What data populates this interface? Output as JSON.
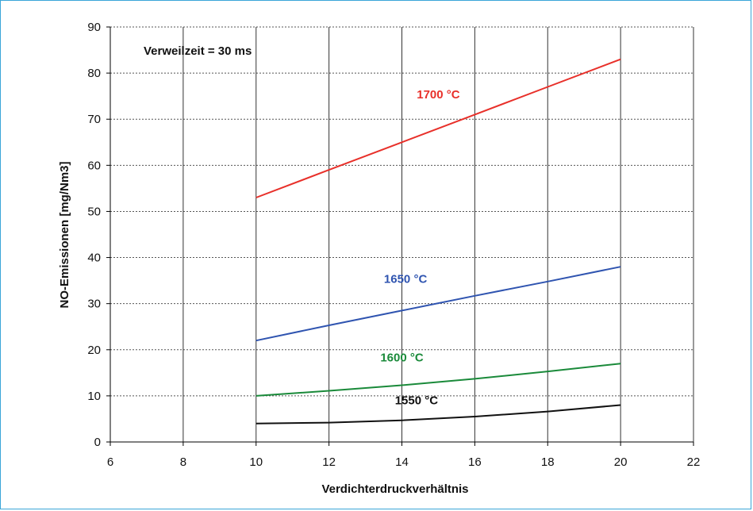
{
  "chart_data": {
    "type": "line",
    "xlabel": "Verdichterdruckverhältnis",
    "ylabel": "NO-Emissionen [mg/Nm3]",
    "xlim": [
      6,
      22
    ],
    "ylim": [
      0,
      90
    ],
    "xticks": [
      6,
      8,
      10,
      12,
      14,
      16,
      18,
      20,
      22
    ],
    "yticks": [
      0,
      10,
      20,
      30,
      40,
      50,
      60,
      70,
      80,
      90
    ],
    "grid": true,
    "annotation": "Verweilzeit = 30 ms",
    "series": [
      {
        "name": "1700 °C",
        "color": "#e8302a",
        "x": [
          10,
          12,
          14,
          16,
          18,
          20
        ],
        "y": [
          53,
          59,
          65,
          71,
          77,
          83
        ],
        "label_at": [
          15,
          74.5
        ]
      },
      {
        "name": "1650 °C",
        "color": "#2f54b0",
        "x": [
          10,
          12,
          14,
          16,
          18,
          20
        ],
        "y": [
          22,
          25.3,
          28.5,
          31.7,
          34.8,
          38
        ],
        "label_at": [
          14.1,
          34.5
        ]
      },
      {
        "name": "1600 °C",
        "color": "#1a8a3a",
        "x": [
          10,
          12,
          14,
          16,
          18,
          20
        ],
        "y": [
          10,
          11.1,
          12.3,
          13.7,
          15.3,
          17
        ],
        "label_at": [
          14.0,
          17.5
        ]
      },
      {
        "name": "1550 °C",
        "color": "#111111",
        "x": [
          10,
          12,
          14,
          16,
          18,
          20
        ],
        "y": [
          4,
          4.2,
          4.7,
          5.5,
          6.6,
          8
        ],
        "label_at": [
          14.4,
          8.2
        ]
      }
    ]
  }
}
